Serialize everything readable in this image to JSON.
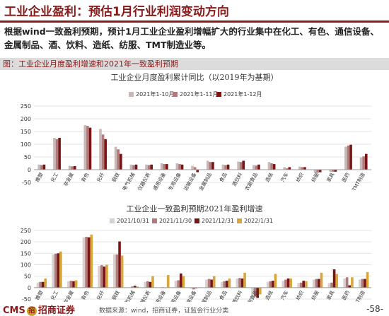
{
  "header": {
    "title": "工业企业盈利：预估1月行业利润变动方向",
    "summary": "根据wind一致盈利预期，预计1月工业企业盈利增幅扩大的行业集中在化工、有色、通信设备、金属制品、酒、饮料、造纸、纺服、TMT制造业等。"
  },
  "figure_label": "图：工业企业月度盈利增速和2021年一致盈利预期",
  "footer": {
    "logo_cms": "CMS",
    "logo_mark": "招",
    "logo_name": "招商证券",
    "source": "数据来源：wind，招商证券，证监会行业分类",
    "page": "-58-"
  },
  "chart_data": [
    {
      "type": "bar",
      "title": "工业企业月度盈利累计同比（以2019年为基期）",
      "ylim": [
        -50,
        250
      ],
      "yticks": [
        -50,
        0,
        50,
        100,
        150,
        200,
        250
      ],
      "grid": true,
      "legend_position": "top",
      "categories": [
        "橡塑",
        "化工",
        "非金属",
        "有色",
        "化纤",
        "钢铁",
        "电气机械",
        "仪器仪表",
        "通用设备",
        "专用设备",
        "运输设备",
        "金属制品",
        "食品",
        "酒饮料",
        "农副食品",
        "造纸",
        "汽车",
        "纺织",
        "纺服",
        "家具",
        "医药",
        "TMT制造"
      ],
      "series": [
        {
          "name": "2021年1-10月",
          "color": "#c9b8b8",
          "values": [
            20,
            125,
            15,
            175,
            160,
            90,
            20,
            20,
            25,
            25,
            15,
            35,
            20,
            32,
            18,
            30,
            10,
            12,
            -12,
            -8,
            90,
            48
          ]
        },
        {
          "name": "2021年1-11月",
          "color": "#b07a7a",
          "values": [
            18,
            120,
            13,
            172,
            138,
            80,
            18,
            18,
            22,
            22,
            10,
            30,
            18,
            30,
            16,
            25,
            5,
            10,
            -12,
            -8,
            95,
            52
          ]
        },
        {
          "name": "2021年1-12月",
          "color": "#7a1515",
          "values": [
            20,
            125,
            14,
            165,
            120,
            62,
            20,
            20,
            22,
            20,
            -10,
            30,
            20,
            35,
            20,
            22,
            10,
            10,
            -10,
            -8,
            98,
            62
          ]
        }
      ]
    },
    {
      "type": "bar",
      "title": "工业企业一致盈利预期2021年盈利增速",
      "ylim": [
        -50,
        250
      ],
      "yticks": [
        -50,
        0,
        50,
        100,
        150,
        200,
        250
      ],
      "grid": true,
      "legend_position": "top",
      "categories": [
        "橡塑",
        "化工",
        "非金属",
        "有色",
        "化纤",
        "钢铁",
        "电气机械",
        "仪器仪表",
        "通用设备",
        "专用设备",
        "运输设备",
        "金属制品",
        "食品",
        "酒饮料",
        "农副食品",
        "造纸",
        "汽车",
        "纺织",
        "纺服",
        "家具",
        "医药",
        "TMT制造"
      ],
      "series": [
        {
          "name": "2021/10/31",
          "color": "#d9d0d0",
          "values": [
            22,
            145,
            28,
            220,
            95,
            145,
            0,
            25,
            0,
            30,
            -5,
            35,
            25,
            40,
            -35,
            25,
            30,
            20,
            35,
            20,
            40,
            35
          ]
        },
        {
          "name": "2021/11/30",
          "color": "#b07a7a",
          "values": [
            25,
            148,
            30,
            222,
            98,
            145,
            5,
            28,
            2,
            32,
            -8,
            38,
            28,
            42,
            -40,
            28,
            35,
            22,
            38,
            22,
            45,
            38
          ]
        },
        {
          "name": "2021/12/31",
          "color": "#7a1515",
          "values": [
            25,
            150,
            28,
            220,
            92,
            202,
            8,
            25,
            0,
            62,
            -3,
            35,
            30,
            40,
            -45,
            30,
            40,
            30,
            38,
            80,
            10,
            38
          ]
        },
        {
          "name": "2022/1/31",
          "color": "#d9a63a",
          "values": [
            40,
            158,
            32,
            232,
            100,
            140,
            5,
            50,
            55,
            50,
            0,
            50,
            40,
            65,
            -30,
            60,
            40,
            28,
            65,
            60,
            45,
            68
          ]
        }
      ]
    }
  ]
}
